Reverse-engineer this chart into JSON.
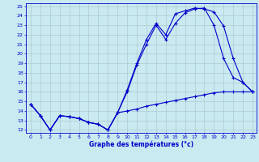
{
  "title": "Graphe des températures (°c)",
  "bg_color": "#c8eaf0",
  "line_color": "#0000cc",
  "grid_color": "#b0c8d0",
  "ylim": [
    12,
    25
  ],
  "xlim": [
    0,
    23
  ],
  "yticks": [
    12,
    13,
    14,
    15,
    16,
    17,
    18,
    19,
    20,
    21,
    22,
    23,
    24,
    25
  ],
  "xticks": [
    0,
    1,
    2,
    3,
    4,
    5,
    6,
    7,
    8,
    9,
    10,
    11,
    12,
    13,
    14,
    15,
    16,
    17,
    18,
    19,
    20,
    21,
    22,
    23
  ],
  "series1_x": [
    0,
    1,
    2,
    3,
    4,
    5,
    6,
    7,
    8,
    9,
    10,
    11,
    12,
    13,
    14,
    15,
    16,
    17,
    18,
    19,
    20,
    21,
    22,
    23
  ],
  "series1_y": [
    14.7,
    13.5,
    12.0,
    13.5,
    13.4,
    13.2,
    12.8,
    12.6,
    12.0,
    13.8,
    16.0,
    18.8,
    21.0,
    23.0,
    21.5,
    23.2,
    24.3,
    24.7,
    24.8,
    23.0,
    19.5,
    17.5,
    17.0,
    16.0
  ],
  "series2_x": [
    0,
    1,
    2,
    3,
    4,
    5,
    6,
    7,
    8,
    9,
    10,
    11,
    12,
    13,
    14,
    15,
    16,
    17,
    18,
    19,
    20,
    21,
    22,
    23
  ],
  "series2_y": [
    14.7,
    13.5,
    12.0,
    13.5,
    13.4,
    13.2,
    12.8,
    12.6,
    12.0,
    13.8,
    16.2,
    19.0,
    21.5,
    23.2,
    22.0,
    24.2,
    24.5,
    24.8,
    24.7,
    24.4,
    22.9,
    19.5,
    17.0,
    16.0
  ],
  "series3_x": [
    0,
    1,
    2,
    3,
    4,
    5,
    6,
    7,
    8,
    9,
    10,
    11,
    12,
    13,
    14,
    15,
    16,
    17,
    18,
    19,
    20,
    21,
    22,
    23
  ],
  "series3_y": [
    14.7,
    13.5,
    12.0,
    13.5,
    13.4,
    13.2,
    12.8,
    12.6,
    12.0,
    13.8,
    14.0,
    14.2,
    14.5,
    14.7,
    14.9,
    15.1,
    15.3,
    15.5,
    15.7,
    15.9,
    16.0,
    16.0,
    16.0,
    16.0
  ]
}
